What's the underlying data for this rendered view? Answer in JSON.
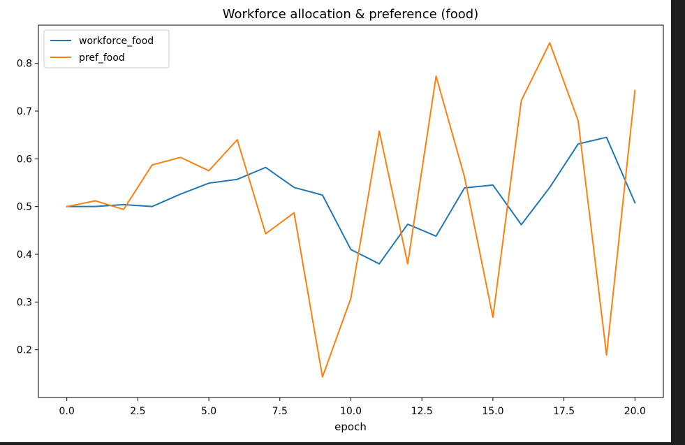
{
  "chart_data": {
    "type": "line",
    "title": "Workforce allocation & preference (food)",
    "xlabel": "epoch",
    "ylabel": "",
    "xlim": [
      -1.0,
      21.0
    ],
    "ylim": [
      0.1,
      0.88
    ],
    "xticks": [
      0.0,
      2.5,
      5.0,
      7.5,
      10.0,
      12.5,
      15.0,
      17.5,
      20.0
    ],
    "xtick_labels": [
      "0.0",
      "2.5",
      "5.0",
      "7.5",
      "10.0",
      "12.5",
      "15.0",
      "17.5",
      "20.0"
    ],
    "yticks": [
      0.2,
      0.3,
      0.4,
      0.5,
      0.6,
      0.7,
      0.8
    ],
    "ytick_labels": [
      "0.2",
      "0.3",
      "0.4",
      "0.5",
      "0.6",
      "0.7",
      "0.8"
    ],
    "grid": false,
    "legend_position": "top-left",
    "x": [
      0,
      1,
      2,
      3,
      4,
      5,
      6,
      7,
      8,
      9,
      10,
      11,
      12,
      13,
      14,
      15,
      16,
      17,
      18,
      19,
      20
    ],
    "series": [
      {
        "name": "workforce_food",
        "color": "#1f77b4",
        "values": [
          0.5,
          0.5,
          0.504,
          0.5,
          0.526,
          0.549,
          0.557,
          0.582,
          0.54,
          0.524,
          0.41,
          0.38,
          0.463,
          0.438,
          0.539,
          0.545,
          0.462,
          0.54,
          0.631,
          0.645,
          0.508
        ]
      },
      {
        "name": "pref_food",
        "color": "#ff7f0e",
        "values": [
          0.5,
          0.512,
          0.494,
          0.587,
          0.603,
          0.575,
          0.64,
          0.443,
          0.487,
          0.143,
          0.308,
          0.658,
          0.38,
          0.773,
          0.562,
          0.268,
          0.722,
          0.843,
          0.68,
          0.189,
          0.743
        ]
      }
    ]
  }
}
